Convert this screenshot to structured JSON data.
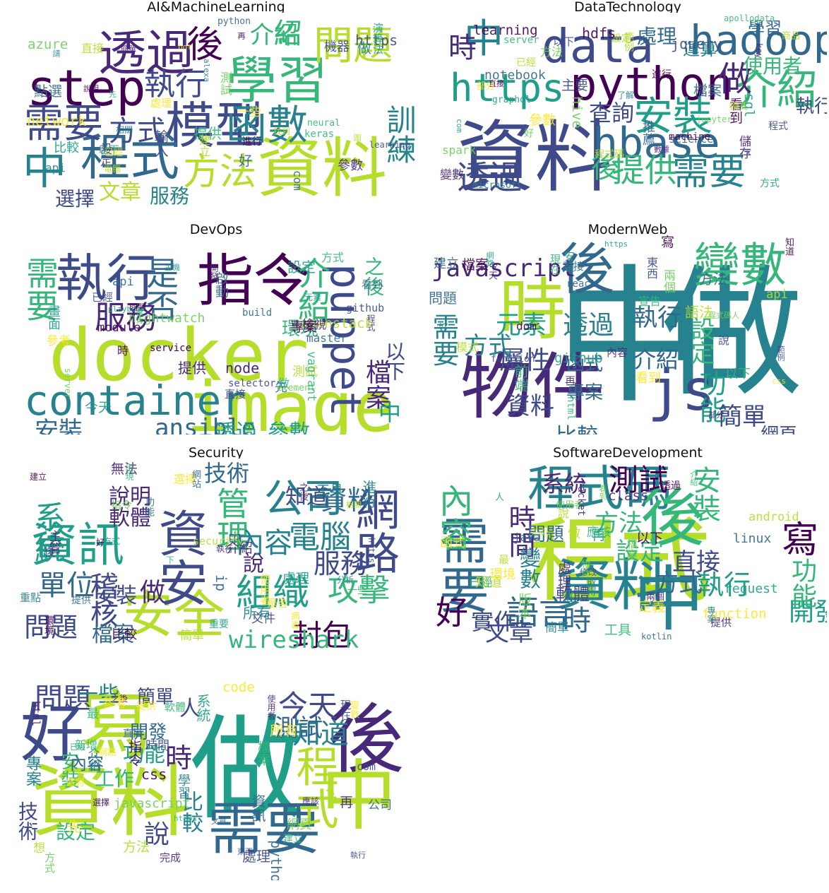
{
  "palette": [
    "#440154",
    "#482878",
    "#3e4a89",
    "#31688e",
    "#26828e",
    "#1f9e89",
    "#35b779",
    "#6ece58",
    "#b5de2b",
    "#fde725"
  ],
  "panels": [
    {
      "title": "AI&MachineLearning",
      "words": [
        "資料",
        "學習",
        "step",
        "問題",
        "模型",
        "透過",
        "程式",
        "函數",
        "需要",
        "中",
        "訓練",
        "方法",
        "後",
        "執行",
        "方式",
        "介紹",
        "紹",
        "文章",
        "服務",
        "選擇",
        "輸入",
        "處理",
        "進行",
        "機器",
        "好",
        "比較",
        "python",
        "bot",
        "直接",
        "測試",
        "圖",
        "https",
        "做",
        "說明",
        "提供",
        "neural",
        "先",
        "參數",
        "設定",
        "電腦",
        "已經",
        "相關",
        "以下",
        "一些",
        "點選",
        "簡單",
        "請",
        "再",
        "alexa",
        "com",
        "api",
        "演算法",
        "找到",
        "建立",
        "keras",
        "network",
        "learning",
        "azure"
      ]
    },
    {
      "title": "DataTechnology",
      "words": [
        "資料",
        "data",
        "python",
        "hadoop",
        "hbase",
        "https",
        "介紹",
        "安裝",
        "需要",
        "中",
        "提供",
        "做",
        "透過",
        "時",
        "後",
        "查詢",
        "執行",
        "使用者",
        "處理",
        "運算",
        "學習",
        "推薦",
        "graphql",
        "檔案",
        "spark",
        "server",
        "方式",
        "直接",
        "進行",
        "儲存",
        "com",
        "設定",
        "數據",
        "看到",
        "程式",
        "方法",
        "範例",
        "變數",
        "商品",
        "參數",
        "apollodata",
        "jupyter",
        "microsoft",
        "hdfs",
        "science",
        "notebook",
        "key",
        "模式",
        "程式碼",
        "主要",
        "以下",
        "部分",
        "下",
        "好",
        "已經",
        "了解",
        "jquery",
        "sql",
        "hive",
        "machine",
        "learning"
      ]
    },
    {
      "title": "DevOps",
      "words": [
        "docker",
        "image",
        "container",
        "指令",
        "執行",
        "puppet",
        "需要",
        "是否",
        "服務",
        "介紹",
        "安裝",
        "ansible",
        "透過",
        "參數",
        "檔案",
        "中",
        "之後",
        "以下",
        "環境",
        "提供",
        "node",
        "service",
        "master",
        "程式",
        "方式",
        "已經",
        "openstack",
        "設定",
        "測試",
        "檢視",
        "啟動",
        "直接",
        "參考",
        "問題",
        "做",
        "先",
        "server",
        "時",
        "元素",
        "畫面",
        "進行",
        "主機",
        "playbook",
        "看到",
        "build",
        "element",
        "api",
        "開發",
        "selector",
        "nightwatch",
        "module",
        "github",
        "今天",
        "專案",
        "vagrant"
      ]
    },
    {
      "title": "ModernWeb",
      "words": [
        "中",
        "做",
        "物件",
        "變數",
        "時",
        "後",
        "js",
        "javascript",
        "元素",
        "屬性",
        "執行",
        "透過",
        "介紹",
        "方式",
        "需要",
        "設定",
        "函式",
        "功能",
        "專案",
        "資料",
        "網頁",
        "比較",
        "簡單",
        "好",
        "程式碼人",
        "css",
        "html",
        "再",
        "宣告",
        "安裝",
        "範例",
        "前端",
        "檔案",
        "寫",
        "知道",
        "東西",
        "https",
        "api",
        "建立",
        "看到",
        "function",
        "react",
        "問題",
        "方法",
        "說",
        "以下",
        "部分",
        "直接",
        "今天",
        "現在",
        "網路",
        "模式",
        "內容",
        "dom",
        "兩個",
        "github",
        "語法"
      ]
    },
    {
      "title": "Security",
      "words": [
        "資訊",
        "安全",
        "資安",
        "網路",
        "組織",
        "公司",
        "系統",
        "管理",
        "電腦",
        "攻擊",
        "內容",
        "服務",
        "單位",
        "問題",
        "稽核",
        "做",
        "封包",
        "資料",
        "知道",
        "說明",
        "軟體",
        "說",
        "技術",
        "檔案",
        "wireshark",
        "安裝",
        "方式",
        "中",
        "後",
        "執行",
        "進行",
        "下",
        "https",
        "提供",
        "相關",
        "人",
        "好",
        "使用者",
        "security",
        "指令",
        "病毒",
        "處理",
        "功能",
        "比較",
        "選擇",
        "介紹",
        "無法",
        "文件",
        "建立",
        "工具",
        "網站",
        "之後",
        "主管",
        "重點",
        "一些",
        "環境",
        "出現",
        "重要",
        "分析",
        "簡單",
        "是否",
        "所有",
        "ip"
      ]
    },
    {
      "title": "SoftwareDevelopment",
      "words": [
        "程式",
        "中",
        "程式碼",
        "需要",
        "資料",
        "後",
        "好",
        "語言",
        "時",
        "設定",
        "測試",
        "執行",
        "安裝",
        "寫",
        "開發",
        "功能",
        "直接",
        "方法",
        "方式",
        "實作",
        "文章",
        "內容",
        "時間",
        "變數",
        "軟體",
        "問題",
        "系統",
        "先",
        "再",
        "做",
        "人",
        "介紹",
        "檔案",
        "版本",
        "定義",
        "簡單",
        "兩個",
        "已經",
        "提供",
        "說",
        "值",
        "函式",
        "以下",
        "看到",
        "知道",
        "使用者",
        "工具",
        "環境",
        "function",
        "class",
        "java",
        "android",
        "kotlin",
        "racket",
        "request",
        "linux",
        "專案",
        "透過",
        "處理",
        "修改",
        "取得",
        "最",
        "物件",
        "完成",
        "應該"
      ]
    },
    {
      "title": "",
      "words": [
        "做",
        "資料",
        "寫",
        "後",
        "中",
        "需要",
        "好",
        "程式",
        "知道",
        "時",
        "說",
        "人",
        "今天",
        "測試",
        "問題",
        "一些",
        "功能",
        "開發",
        "比較",
        "工作",
        "設定",
        "安裝",
        "技術",
        "內容",
        "專案",
        "簡單",
        "檔案",
        "介紹",
        "方法",
        "再",
        "先",
        "方式",
        "最",
        "系統",
        "直接",
        "東西",
        "時間",
        "想",
        "之後",
        "應該",
        "完成",
        "選擇",
        "現在",
        "學習",
        "文章",
        "網頁",
        "javascript",
        "css",
        "https",
        "com",
        "python",
        "html",
        "code",
        "使用者",
        "處理",
        "網路",
        "軟體",
        "指令",
        "公司",
        "變數",
        "已經",
        "執行",
        "提供",
        "參考",
        "新增",
        "所有",
        "資訊",
        "建立",
        "遇到"
      ]
    }
  ]
}
